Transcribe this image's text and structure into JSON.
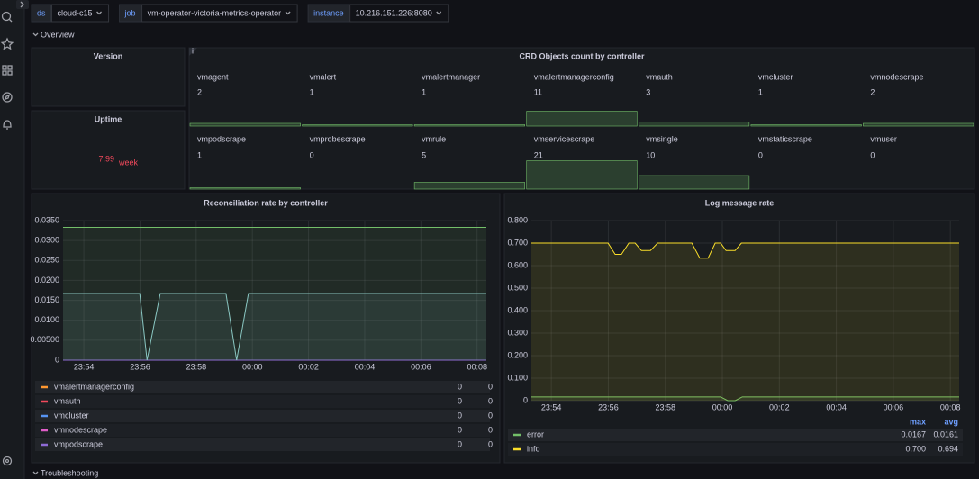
{
  "variables": [
    {
      "label": "ds",
      "value": "cloud-c15"
    },
    {
      "label": "job",
      "value": "vm-operator-victoria-metrics-operator"
    },
    {
      "label": "instance",
      "value": "10.216.151.226:8080"
    }
  ],
  "rows": [
    "Overview",
    "Troubleshooting"
  ],
  "version_panel": {
    "title": "Version"
  },
  "uptime_panel": {
    "title": "Uptime",
    "value": 7.99,
    "unit": "week"
  },
  "crd_panel": {
    "title": "CRD Objects count by controller",
    "items": [
      {
        "name": "vmagent",
        "value": 2
      },
      {
        "name": "vmalert",
        "value": 1
      },
      {
        "name": "vmalertmanager",
        "value": 1
      },
      {
        "name": "vmalertmanagerconfig",
        "value": 11
      },
      {
        "name": "vmauth",
        "value": 3
      },
      {
        "name": "vmcluster",
        "value": 1
      },
      {
        "name": "vmnodescrape",
        "value": 2
      },
      {
        "name": "vmpodscrape",
        "value": 1
      },
      {
        "name": "vmprobescrape",
        "value": 0
      },
      {
        "name": "vmrule",
        "value": 5
      },
      {
        "name": "vmservicescrape",
        "value": 21
      },
      {
        "name": "vmsingle",
        "value": 10
      },
      {
        "name": "vmstaticscrape",
        "value": 0
      },
      {
        "name": "vmuser",
        "value": 0
      }
    ]
  },
  "chart_data": [
    {
      "type": "line",
      "title": "Reconciliation rate by controller",
      "grid": true,
      "xlim": [
        1433.26,
        1448.33
      ],
      "xticks": [
        {
          "value": 1434,
          "label": "23:54"
        },
        {
          "value": 1436,
          "label": "23:56"
        },
        {
          "value": 1438,
          "label": "23:58"
        },
        {
          "value": 1440,
          "label": "00:00"
        },
        {
          "value": 1442,
          "label": "00:02"
        },
        {
          "value": 1444,
          "label": "00:04"
        },
        {
          "value": 1446,
          "label": "00:06"
        },
        {
          "value": 1448,
          "label": "00:08"
        }
      ],
      "ylim": [
        0,
        0.035
      ],
      "yticks": [
        0,
        {
          "value": 0.005,
          "label": "0.00500"
        },
        {
          "value": 0.01,
          "label": "0.0100"
        },
        {
          "value": 0.015,
          "label": "0.0150"
        },
        {
          "value": 0.02,
          "label": "0.0200"
        },
        {
          "value": 0.025,
          "label": "0.0250"
        },
        {
          "value": 0.03,
          "label": "0.0300"
        },
        {
          "value": 0.035,
          "label": "0.0350"
        }
      ],
      "series": [
        {
          "name": "vmalertmanagerconfig",
          "color": "#ff9830",
          "x": [
            1433.26,
            1448.33
          ],
          "values": [
            0,
            0
          ],
          "legend_values": [
            0,
            0
          ]
        },
        {
          "name": "vmauth",
          "color": "#f2495c",
          "x": [
            1433.26,
            1448.33
          ],
          "values": [
            0,
            0
          ],
          "legend_values": [
            0,
            0
          ]
        },
        {
          "name": "vmcluster",
          "color": "#5794f2",
          "x": [
            1433.26,
            1448.33
          ],
          "values": [
            0,
            0
          ],
          "legend_values": [
            0,
            0
          ]
        },
        {
          "name": "vmnodescrape",
          "color": "#e05dc8",
          "x": [
            1433.26,
            1448.33
          ],
          "values": [
            0,
            0
          ],
          "legend_values": [
            0,
            0
          ]
        },
        {
          "name": "vmpodscrape",
          "color": "#8f6bd6",
          "x": [
            1433.26,
            1448.33
          ],
          "values": [
            0,
            0
          ],
          "legend_values": [
            0,
            0
          ]
        },
        {
          "color": "#73bf69",
          "x": [
            1433.26,
            1448.33
          ],
          "values": [
            0.0333,
            0.0333
          ]
        },
        {
          "color": "#8ac7c2",
          "x": [
            1433.26,
            1435.99,
            1436.25,
            1436.72,
            1439.06,
            1439.44,
            1439.86,
            1448.33
          ],
          "values": [
            0.0167,
            0.0167,
            0,
            0.0167,
            0.0167,
            0,
            0.0167,
            0.0167
          ]
        }
      ]
    },
    {
      "type": "line",
      "title": "Log message rate",
      "grid": true,
      "xlim": [
        1433.3,
        1448.31
      ],
      "xticks": [
        {
          "value": 1434,
          "label": "23:54"
        },
        {
          "value": 1436,
          "label": "23:56"
        },
        {
          "value": 1438,
          "label": "23:58"
        },
        {
          "value": 1440,
          "label": "00:00"
        },
        {
          "value": 1442,
          "label": "00:02"
        },
        {
          "value": 1444,
          "label": "00:04"
        },
        {
          "value": 1446,
          "label": "00:06"
        },
        {
          "value": 1448,
          "label": "00:08"
        }
      ],
      "ylim": [
        0,
        0.8
      ],
      "yticks": [
        0,
        {
          "value": 0.1,
          "label": "0.100"
        },
        {
          "value": 0.2,
          "label": "0.200"
        },
        {
          "value": 0.3,
          "label": "0.300"
        },
        {
          "value": 0.4,
          "label": "0.400"
        },
        {
          "value": 0.5,
          "label": "0.500"
        },
        {
          "value": 0.6,
          "label": "0.600"
        },
        {
          "value": 0.7,
          "label": "0.700"
        },
        {
          "value": 0.8,
          "label": "0.800"
        }
      ],
      "legend_columns": [
        "max",
        "avg"
      ],
      "series": [
        {
          "name": "error",
          "color": "#73bf69",
          "x": [
            1433.3,
            1439.94,
            1440.19,
            1440.45,
            1440.7,
            1448.31
          ],
          "values": [
            0.0167,
            0.0167,
            0,
            0,
            0.0167,
            0.0167
          ],
          "legend": [
            {
              "value": 0.0167,
              "label": "0.0167"
            },
            {
              "value": 0.0161,
              "label": "0.0161"
            }
          ]
        },
        {
          "name": "info",
          "color": "#fade2a",
          "x": [
            1433.3,
            1435.99,
            1436.24,
            1436.46,
            1436.72,
            1436.94,
            1437.16,
            1437.48,
            1437.73,
            1438.93,
            1439.21,
            1439.5,
            1439.75,
            1439.94,
            1440.13,
            1440.45,
            1440.67,
            1448.31
          ],
          "values": [
            0.7,
            0.7,
            0.65,
            0.65,
            0.7,
            0.7,
            0.667,
            0.667,
            0.7,
            0.7,
            0.633,
            0.633,
            0.7,
            0.7,
            0.667,
            0.667,
            0.7,
            0.7
          ],
          "legend": [
            {
              "value": 0.7,
              "label": "0.700"
            },
            {
              "value": 0.694,
              "label": "0.694"
            }
          ]
        }
      ]
    }
  ]
}
